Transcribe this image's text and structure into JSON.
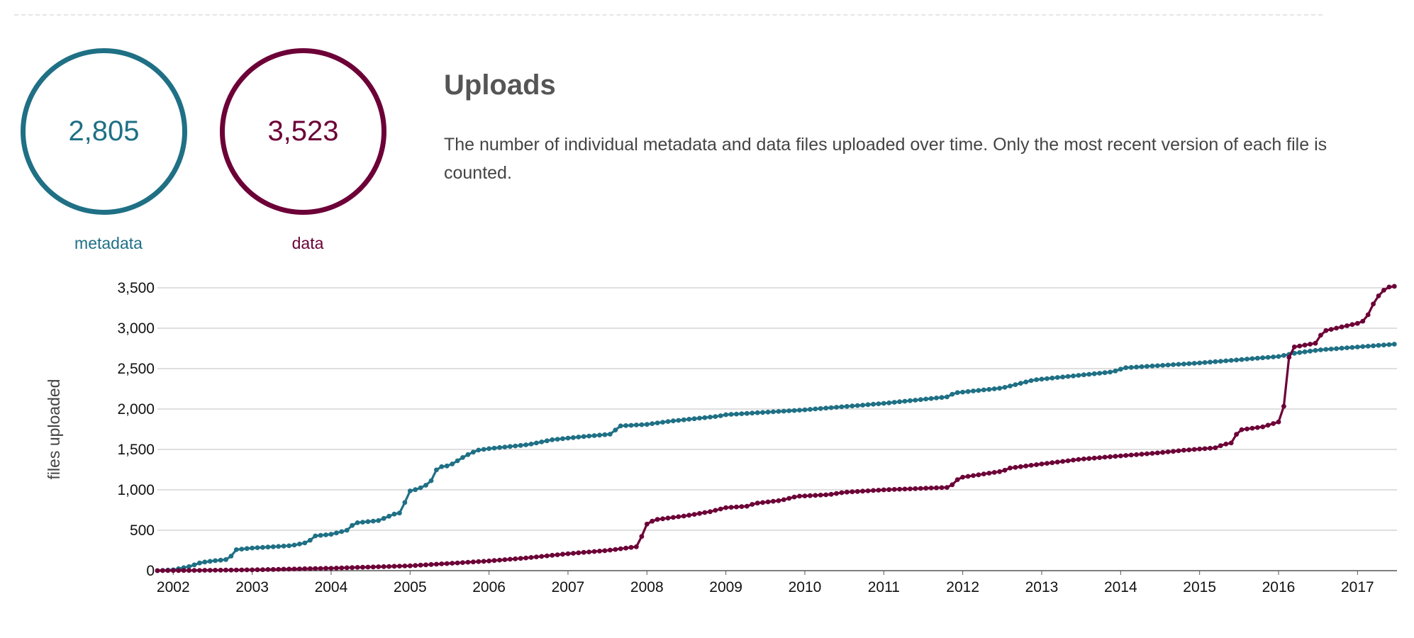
{
  "stats": {
    "metadata": {
      "value": "2,805",
      "label": "metadata",
      "color": "#1f7085"
    },
    "data": {
      "value": "3,523",
      "label": "data",
      "color": "#6c0037"
    }
  },
  "header": {
    "title": "Uploads",
    "description": "The number of individual metadata and data files uploaded over time. Only the most recent version of each file is counted."
  },
  "chart_data": {
    "type": "line",
    "title": "",
    "xlabel": "",
    "ylabel": "files uploaded",
    "xlim": [
      2001.8,
      2017.5
    ],
    "ylim": [
      0,
      3500
    ],
    "yticks": [
      0,
      500,
      1000,
      1500,
      2000,
      2500,
      3000,
      3500
    ],
    "ytick_labels": [
      "0",
      "500",
      "1,000",
      "1,500",
      "2,000",
      "2,500",
      "3,000",
      "3,500"
    ],
    "xticks": [
      2002,
      2003,
      2004,
      2005,
      2006,
      2007,
      2008,
      2009,
      2010,
      2011,
      2012,
      2013,
      2014,
      2015,
      2016,
      2017
    ],
    "xtick_labels": [
      "2002",
      "2003",
      "2004",
      "2005",
      "2006",
      "2007",
      "2008",
      "2009",
      "2010",
      "2011",
      "2012",
      "2013",
      "2014",
      "2015",
      "2016",
      "2017"
    ],
    "grid": "horizontal",
    "series": [
      {
        "key": "metadata",
        "color": "#1f7085",
        "points": [
          [
            2001.8,
            0
          ],
          [
            2002.0,
            10
          ],
          [
            2002.2,
            50
          ],
          [
            2002.35,
            100
          ],
          [
            2002.5,
            120
          ],
          [
            2002.7,
            140
          ],
          [
            2002.8,
            260
          ],
          [
            2003.0,
            280
          ],
          [
            2003.5,
            310
          ],
          [
            2003.7,
            350
          ],
          [
            2003.8,
            430
          ],
          [
            2004.0,
            450
          ],
          [
            2004.2,
            500
          ],
          [
            2004.3,
            590
          ],
          [
            2004.6,
            620
          ],
          [
            2004.8,
            700
          ],
          [
            2004.9,
            720
          ],
          [
            2004.97,
            980
          ],
          [
            2005.1,
            1010
          ],
          [
            2005.25,
            1080
          ],
          [
            2005.35,
            1280
          ],
          [
            2005.5,
            1300
          ],
          [
            2005.7,
            1420
          ],
          [
            2005.85,
            1490
          ],
          [
            2006.0,
            1510
          ],
          [
            2006.5,
            1560
          ],
          [
            2006.8,
            1620
          ],
          [
            2007.2,
            1660
          ],
          [
            2007.55,
            1690
          ],
          [
            2007.65,
            1790
          ],
          [
            2008.0,
            1810
          ],
          [
            2008.3,
            1850
          ],
          [
            2008.9,
            1910
          ],
          [
            2009.0,
            1930
          ],
          [
            2010.0,
            1990
          ],
          [
            2010.5,
            2030
          ],
          [
            2011.0,
            2070
          ],
          [
            2011.8,
            2150
          ],
          [
            2011.9,
            2200
          ],
          [
            2012.5,
            2260
          ],
          [
            2012.9,
            2360
          ],
          [
            2013.5,
            2420
          ],
          [
            2013.9,
            2460
          ],
          [
            2014.05,
            2510
          ],
          [
            2015.0,
            2570
          ],
          [
            2016.0,
            2650
          ],
          [
            2016.2,
            2690
          ],
          [
            2016.5,
            2730
          ],
          [
            2017.5,
            2805
          ]
        ]
      },
      {
        "key": "data",
        "color": "#6c0037",
        "points": [
          [
            2001.8,
            0
          ],
          [
            2002.5,
            5
          ],
          [
            2003.0,
            10
          ],
          [
            2004.0,
            30
          ],
          [
            2005.0,
            60
          ],
          [
            2006.0,
            120
          ],
          [
            2006.5,
            160
          ],
          [
            2007.0,
            210
          ],
          [
            2007.5,
            250
          ],
          [
            2007.9,
            300
          ],
          [
            2007.97,
            560
          ],
          [
            2008.1,
            630
          ],
          [
            2008.5,
            680
          ],
          [
            2008.8,
            730
          ],
          [
            2009.0,
            780
          ],
          [
            2009.3,
            800
          ],
          [
            2009.35,
            830
          ],
          [
            2009.7,
            870
          ],
          [
            2009.9,
            920
          ],
          [
            2010.3,
            940
          ],
          [
            2010.5,
            970
          ],
          [
            2011.0,
            1000
          ],
          [
            2011.8,
            1030
          ],
          [
            2011.9,
            1080
          ],
          [
            2011.95,
            1150
          ],
          [
            2012.5,
            1230
          ],
          [
            2012.6,
            1270
          ],
          [
            2013.0,
            1320
          ],
          [
            2013.5,
            1380
          ],
          [
            2014.0,
            1420
          ],
          [
            2014.5,
            1460
          ],
          [
            2014.8,
            1490
          ],
          [
            2015.2,
            1520
          ],
          [
            2015.3,
            1560
          ],
          [
            2015.4,
            1580
          ],
          [
            2015.5,
            1740
          ],
          [
            2015.8,
            1780
          ],
          [
            2016.0,
            1840
          ],
          [
            2016.05,
            1850
          ],
          [
            2016.1,
            2400
          ],
          [
            2016.15,
            2760
          ],
          [
            2016.5,
            2820
          ],
          [
            2016.55,
            2960
          ],
          [
            2017.0,
            3060
          ],
          [
            2017.1,
            3100
          ],
          [
            2017.2,
            3300
          ],
          [
            2017.3,
            3450
          ],
          [
            2017.4,
            3510
          ],
          [
            2017.5,
            3523
          ]
        ]
      }
    ]
  }
}
